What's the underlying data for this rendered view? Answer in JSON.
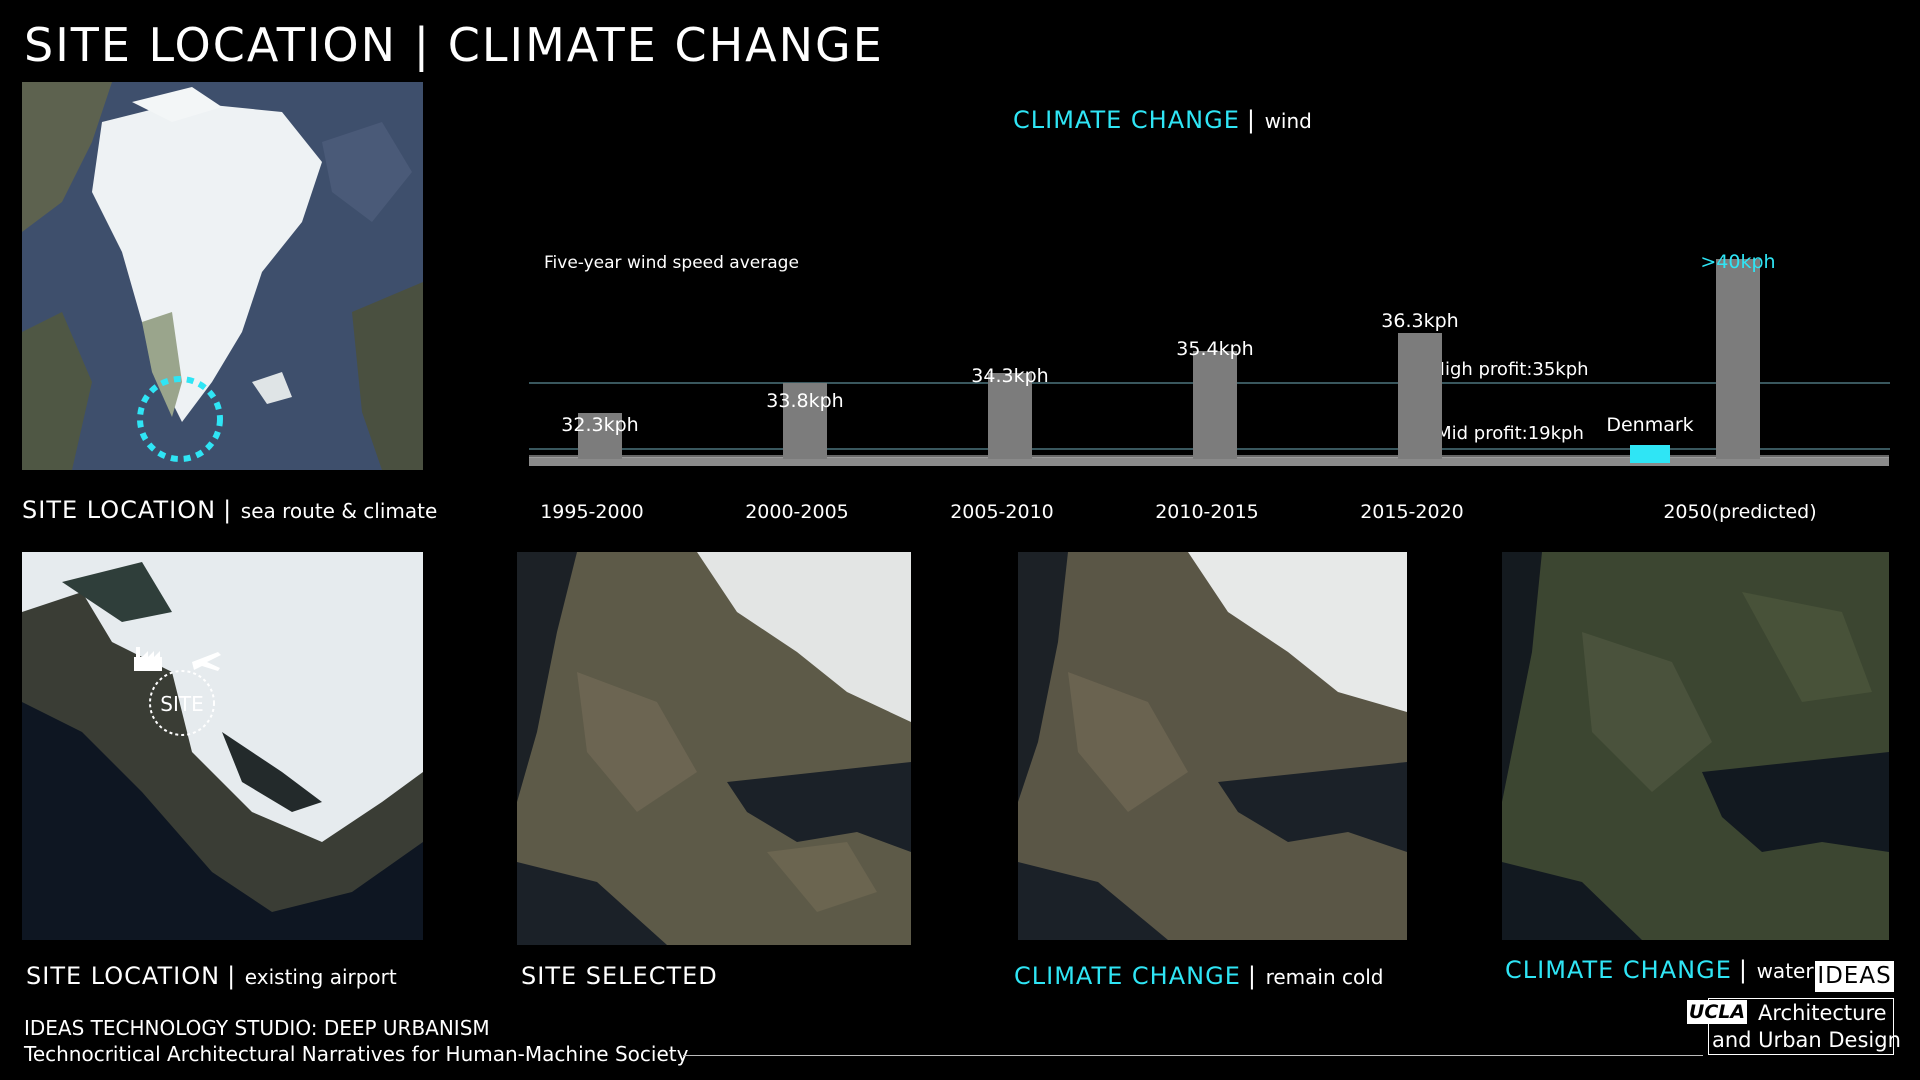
{
  "title": "SITE LOCATION | CLIMATE CHANGE",
  "chart_data": {
    "type": "bar",
    "title_main": "CLIMATE CHANGE",
    "title_sub": "wind",
    "subtitle": "Five-year wind speed average",
    "categories": [
      "1995-2000",
      "2000-2005",
      "2005-2010",
      "2010-2015",
      "2015-2020",
      "2050(predicted)"
    ],
    "values": [
      32.3,
      33.8,
      34.3,
      35.4,
      36.3,
      40
    ],
    "value_labels": [
      "32.3kph",
      "33.8kph",
      "34.3kph",
      "35.4kph",
      "36.3kph",
      ">40kph"
    ],
    "unit": "kph",
    "reference_lines": [
      {
        "label": "High profit:35kph",
        "value": 35
      },
      {
        "label": "Mid profit:19kph",
        "value": 19
      }
    ],
    "extra_bar": {
      "label": "Denmark"
    },
    "colors": {
      "bar": "#7c7c7c",
      "highlight": "#2fe5f5",
      "refline": "#5b8b96",
      "text": "#ffffff"
    },
    "grid": false,
    "legend": "none"
  },
  "captions": {
    "site_location": {
      "main": "SITE LOCATION",
      "sub": "sea route & climate"
    },
    "existing_airport": {
      "main": "SITE LOCATION",
      "sub": "existing airport"
    },
    "site_selected": {
      "main": "SITE SELECTED"
    },
    "remain_cold": {
      "main": "CLIMATE CHANGE",
      "sub": "remain cold"
    },
    "water": {
      "main": "CLIMATE CHANGE",
      "sub": "water"
    }
  },
  "map_labels": {
    "site": "SITE"
  },
  "footer": {
    "line1": "IDEAS TECHNOLOGY STUDIO: DEEP URBANISM",
    "line2": "Technocritical Architectural Narratives for Human-Machine Society"
  },
  "logos": {
    "ideas": "IDEAS",
    "ucla": "UCLA",
    "dept_line1": "Architecture",
    "dept_line2": "and Urban Design"
  }
}
